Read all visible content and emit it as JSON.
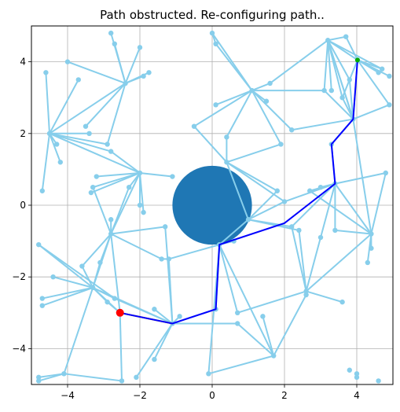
{
  "chart_data": {
    "type": "scatter",
    "title": "Path obstructed. Re-configuring path..",
    "xlabel": "",
    "ylabel": "",
    "xlim": [
      -5.0,
      5.0
    ],
    "ylim": [
      -5.0,
      5.0
    ],
    "grid": true,
    "x_ticks": [
      -4,
      -2,
      0,
      2,
      4
    ],
    "y_ticks": [
      -4,
      -2,
      0,
      2,
      4
    ],
    "x_tick_labels": [
      "−4",
      "−2",
      "0",
      "2",
      "4"
    ],
    "y_tick_labels": [
      "−4",
      "−2",
      "0",
      "2",
      "4"
    ],
    "obstacle": {
      "center": [
        0.0,
        0.0
      ],
      "radius": 1.1,
      "color": "#1f77b4"
    },
    "colors": {
      "tree": "#87ceeb",
      "path": "#0000ff",
      "retrace": "#ff8c00",
      "start": "#ff0000",
      "goal": "#00aa00"
    },
    "start": [
      -2.55,
      -3.0
    ],
    "goal": [
      4.02,
      4.05
    ],
    "nodes": [
      [
        -4.7,
        0.4
      ],
      [
        -4.6,
        3.7
      ],
      [
        -4.5,
        2.0
      ],
      [
        -4.3,
        1.7
      ],
      [
        -4.2,
        1.2
      ],
      [
        -4.0,
        4.0
      ],
      [
        -3.7,
        3.5
      ],
      [
        -3.5,
        2.2
      ],
      [
        -3.4,
        2.0
      ],
      [
        -3.2,
        0.8
      ],
      [
        -3.3,
        0.5
      ],
      [
        -3.35,
        0.35
      ],
      [
        -2.9,
        1.7
      ],
      [
        -2.8,
        1.5
      ],
      [
        -2.8,
        4.8
      ],
      [
        -2.7,
        4.5
      ],
      [
        -2.4,
        3.4
      ],
      [
        -2.0,
        4.4
      ],
      [
        -1.9,
        3.6
      ],
      [
        -1.75,
        3.7
      ],
      [
        -2.0,
        0.9
      ],
      [
        -2.3,
        0.5
      ],
      [
        -2.0,
        0.0
      ],
      [
        -1.9,
        -0.2
      ],
      [
        -1.1,
        0.8
      ],
      [
        -1.3,
        -0.6
      ],
      [
        -1.4,
        -1.5
      ],
      [
        -1.2,
        -1.5
      ],
      [
        -2.8,
        -0.4
      ],
      [
        -2.8,
        -0.8
      ],
      [
        -3.1,
        -1.6
      ],
      [
        -3.6,
        -1.7
      ],
      [
        -4.8,
        -1.1
      ],
      [
        -4.4,
        -2.0
      ],
      [
        -4.7,
        -2.6
      ],
      [
        -4.7,
        -2.8
      ],
      [
        -3.3,
        -2.3
      ],
      [
        -2.9,
        -2.7
      ],
      [
        -2.7,
        -2.6
      ],
      [
        -2.55,
        -3.0
      ],
      [
        -1.6,
        -2.9
      ],
      [
        -1.1,
        -3.3
      ],
      [
        -0.9,
        -3.1
      ],
      [
        -1.6,
        -4.3
      ],
      [
        -2.1,
        -4.8
      ],
      [
        -2.5,
        -4.9
      ],
      [
        -4.1,
        -4.7
      ],
      [
        -4.8,
        -4.8
      ],
      [
        -4.8,
        -4.9
      ],
      [
        -0.1,
        -4.7
      ],
      [
        0.1,
        -2.9
      ],
      [
        0.7,
        -3.0
      ],
      [
        0.7,
        -3.3
      ],
      [
        0.6,
        -1.0
      ],
      [
        0.2,
        -1.1
      ],
      [
        1.0,
        -0.4
      ],
      [
        1.7,
        -4.2
      ],
      [
        1.4,
        -3.1
      ],
      [
        2.6,
        -2.4
      ],
      [
        2.6,
        -2.5
      ],
      [
        3.6,
        -2.7
      ],
      [
        2.4,
        -0.7
      ],
      [
        2.2,
        -0.6
      ],
      [
        3.0,
        -0.9
      ],
      [
        3.4,
        -0.7
      ],
      [
        4.4,
        -0.8
      ],
      [
        4.4,
        -1.2
      ],
      [
        4.3,
        -1.6
      ],
      [
        4.8,
        0.9
      ],
      [
        3.4,
        0.6
      ],
      [
        3.0,
        0.5
      ],
      [
        2.7,
        0.4
      ],
      [
        1.8,
        0.4
      ],
      [
        2.0,
        0.1
      ],
      [
        3.3,
        1.7
      ],
      [
        3.9,
        2.4
      ],
      [
        3.1,
        3.2
      ],
      [
        3.3,
        3.2
      ],
      [
        3.2,
        4.6
      ],
      [
        3.7,
        4.7
      ],
      [
        3.6,
        3.0
      ],
      [
        3.8,
        3.5
      ],
      [
        4.02,
        4.05
      ],
      [
        4.7,
        3.8
      ],
      [
        4.6,
        3.7
      ],
      [
        4.9,
        3.6
      ],
      [
        4.9,
        2.8
      ],
      [
        2.2,
        2.1
      ],
      [
        1.6,
        3.4
      ],
      [
        1.1,
        3.2
      ],
      [
        1.5,
        2.9
      ],
      [
        1.9,
        1.7
      ],
      [
        0.1,
        2.8
      ],
      [
        0.4,
        1.9
      ],
      [
        -0.5,
        2.2
      ],
      [
        0.4,
        1.2
      ],
      [
        0.1,
        4.5
      ],
      [
        0.0,
        4.8
      ],
      [
        3.8,
        -4.6
      ],
      [
        4.0,
        -4.7
      ],
      [
        4.0,
        -4.8
      ],
      [
        4.6,
        -4.9
      ]
    ],
    "edges": [
      [
        -4.5,
        2.0,
        -4.7,
        0.4
      ],
      [
        -4.5,
        2.0,
        -4.6,
        3.7
      ],
      [
        -4.5,
        2.0,
        -4.3,
        1.7
      ],
      [
        -4.5,
        2.0,
        -4.2,
        1.2
      ],
      [
        -4.5,
        2.0,
        -3.7,
        3.5
      ],
      [
        -4.5,
        2.0,
        -3.4,
        2.0
      ],
      [
        -4.5,
        2.0,
        -2.9,
        1.7
      ],
      [
        -4.5,
        2.0,
        -2.4,
        3.4
      ],
      [
        -4.5,
        2.0,
        -2.8,
        1.5
      ],
      [
        -4.5,
        2.0,
        -2.0,
        0.9
      ],
      [
        -2.4,
        3.4,
        -4.0,
        4.0
      ],
      [
        -2.4,
        3.4,
        -3.5,
        2.2
      ],
      [
        -2.4,
        3.4,
        -2.8,
        4.8
      ],
      [
        -2.4,
        3.4,
        -2.7,
        4.5
      ],
      [
        -2.4,
        3.4,
        -2.0,
        4.4
      ],
      [
        -2.4,
        3.4,
        -1.9,
        3.6
      ],
      [
        -2.4,
        3.4,
        -1.75,
        3.7
      ],
      [
        -2.4,
        3.4,
        -2.9,
        1.7
      ],
      [
        -2.0,
        0.9,
        -3.2,
        0.8
      ],
      [
        -2.0,
        0.9,
        -3.3,
        0.5
      ],
      [
        -2.0,
        0.9,
        -3.35,
        0.35
      ],
      [
        -2.0,
        0.9,
        -2.3,
        0.5
      ],
      [
        -2.0,
        0.9,
        -1.9,
        -0.2
      ],
      [
        -2.0,
        0.9,
        -1.1,
        0.8
      ],
      [
        -2.0,
        0.9,
        -2.8,
        -0.8
      ],
      [
        -2.0,
        0.9,
        -2.8,
        1.5
      ],
      [
        -2.0,
        0.9,
        -2.0,
        0.0
      ],
      [
        -2.8,
        -0.8,
        -3.3,
        0.5
      ],
      [
        -2.8,
        -0.8,
        -2.8,
        -0.4
      ],
      [
        -2.8,
        -0.8,
        -1.3,
        -0.6
      ],
      [
        -2.8,
        -0.8,
        -1.4,
        -1.5
      ],
      [
        -2.8,
        -0.8,
        -3.6,
        -1.7
      ],
      [
        -2.8,
        -0.8,
        -3.1,
        -1.6
      ],
      [
        -2.8,
        -0.8,
        -3.3,
        -2.3
      ],
      [
        -2.8,
        -0.8,
        -2.3,
        0.5
      ],
      [
        -2.8,
        -0.8,
        -2.55,
        -3.0
      ],
      [
        -3.3,
        -2.3,
        -4.4,
        -2.0
      ],
      [
        -3.3,
        -2.3,
        -4.7,
        -2.6
      ],
      [
        -3.3,
        -2.3,
        -4.7,
        -2.8
      ],
      [
        -3.3,
        -2.3,
        -4.8,
        -1.1
      ],
      [
        -3.3,
        -2.3,
        -3.6,
        -1.7
      ],
      [
        -3.3,
        -2.3,
        -1.1,
        -3.3
      ],
      [
        -3.3,
        -2.3,
        -2.55,
        -3.0
      ],
      [
        -3.3,
        -2.3,
        -2.9,
        -2.7
      ],
      [
        -3.3,
        -2.3,
        -2.7,
        -2.6
      ],
      [
        -3.3,
        -2.3,
        -3.1,
        -1.6
      ],
      [
        -4.8,
        -1.1,
        -2.7,
        -2.6
      ],
      [
        -1.1,
        -3.3,
        -2.55,
        -3.0
      ],
      [
        -1.1,
        -3.3,
        -1.6,
        -2.9
      ],
      [
        -1.1,
        -3.3,
        -0.9,
        -3.1
      ],
      [
        -1.1,
        -3.3,
        -1.6,
        -4.3
      ],
      [
        -1.1,
        -3.3,
        -2.1,
        -4.8
      ],
      [
        -1.1,
        -3.3,
        0.1,
        -2.9
      ],
      [
        -1.1,
        -3.3,
        -1.2,
        -1.5
      ],
      [
        -1.1,
        -3.3,
        0.7,
        -3.3
      ],
      [
        -1.1,
        -3.3,
        -1.3,
        -0.6
      ],
      [
        -1.1,
        -3.3,
        -2.7,
        -2.6
      ],
      [
        -2.55,
        -3.0,
        -2.5,
        -4.9
      ],
      [
        -2.55,
        -3.0,
        -2.9,
        -2.7
      ],
      [
        -4.1,
        -4.7,
        -2.5,
        -4.9
      ],
      [
        -4.1,
        -4.7,
        -4.8,
        -4.8
      ],
      [
        -4.1,
        -4.7,
        -4.8,
        -4.9
      ],
      [
        -4.1,
        -4.7,
        -3.3,
        -2.3
      ],
      [
        -1.2,
        -1.5,
        0.2,
        -1.1
      ],
      [
        -1.4,
        -1.5,
        -1.2,
        -1.5
      ],
      [
        0.2,
        -1.1,
        1.0,
        -0.4
      ],
      [
        0.2,
        -1.1,
        0.6,
        -1.0
      ],
      [
        0.2,
        -1.1,
        0.1,
        -2.9
      ],
      [
        0.2,
        -1.1,
        -0.1,
        -4.7
      ],
      [
        0.2,
        -1.1,
        0.7,
        -3.0
      ],
      [
        0.2,
        -1.1,
        1.7,
        -4.2
      ],
      [
        -0.1,
        -4.7,
        1.7,
        -4.2
      ],
      [
        0.7,
        -3.0,
        2.6,
        -2.4
      ],
      [
        0.7,
        -3.3,
        1.7,
        -4.2
      ],
      [
        1.7,
        -4.2,
        1.4,
        -3.1
      ],
      [
        1.7,
        -4.2,
        2.6,
        -2.5
      ],
      [
        2.6,
        -2.4,
        2.2,
        -0.6
      ],
      [
        2.6,
        -2.4,
        3.6,
        -2.7
      ],
      [
        2.6,
        -2.4,
        3.0,
        -0.9
      ],
      [
        2.6,
        -2.4,
        4.4,
        -0.8
      ],
      [
        2.6,
        -2.4,
        2.4,
        -0.7
      ],
      [
        2.6,
        -2.5,
        2.6,
        -2.4
      ],
      [
        1.0,
        -0.4,
        2.2,
        -0.6
      ],
      [
        1.0,
        -0.4,
        1.8,
        0.4
      ],
      [
        1.0,
        -0.4,
        2.0,
        0.1
      ],
      [
        1.0,
        -0.4,
        2.4,
        -0.7
      ],
      [
        3.4,
        0.6,
        2.2,
        -0.6
      ],
      [
        3.4,
        0.6,
        3.0,
        0.5
      ],
      [
        3.4,
        0.6,
        2.7,
        0.4
      ],
      [
        3.4,
        0.6,
        3.4,
        -0.7
      ],
      [
        3.4,
        0.6,
        4.4,
        -0.8
      ],
      [
        3.4,
        0.6,
        4.8,
        0.9
      ],
      [
        3.4,
        0.6,
        3.3,
        1.7
      ],
      [
        3.4,
        0.6,
        2.0,
        0.1
      ],
      [
        3.4,
        0.6,
        3.0,
        -0.9
      ],
      [
        4.4,
        -0.8,
        4.4,
        -1.2
      ],
      [
        4.4,
        -0.8,
        4.3,
        -1.6
      ],
      [
        4.4,
        -0.8,
        3.4,
        -0.7
      ],
      [
        4.4,
        -0.8,
        2.7,
        0.4
      ],
      [
        4.4,
        -0.8,
        4.8,
        0.9
      ],
      [
        4.4,
        -0.8,
        3.9,
        2.4
      ],
      [
        3.9,
        2.4,
        3.3,
        1.7
      ],
      [
        3.9,
        2.4,
        4.9,
        2.8
      ],
      [
        3.9,
        2.4,
        3.6,
        3.0
      ],
      [
        3.9,
        2.4,
        3.8,
        3.5
      ],
      [
        3.9,
        2.4,
        4.02,
        4.05
      ],
      [
        3.9,
        2.4,
        2.2,
        2.1
      ],
      [
        3.9,
        2.4,
        3.1,
        3.2
      ],
      [
        3.9,
        2.4,
        3.2,
        4.6
      ],
      [
        3.2,
        4.6,
        3.7,
        4.7
      ],
      [
        3.2,
        4.6,
        3.1,
        3.2
      ],
      [
        3.2,
        4.6,
        3.3,
        3.2
      ],
      [
        3.2,
        4.6,
        3.6,
        3.0
      ],
      [
        3.2,
        4.6,
        3.8,
        3.5
      ],
      [
        3.2,
        4.6,
        4.02,
        4.05
      ],
      [
        3.2,
        4.6,
        4.7,
        3.8
      ],
      [
        3.2,
        4.6,
        1.6,
        3.4
      ],
      [
        3.2,
        4.6,
        3.9,
        2.4
      ],
      [
        4.02,
        4.05,
        4.7,
        3.8
      ],
      [
        4.02,
        4.05,
        4.6,
        3.7
      ],
      [
        4.02,
        4.05,
        4.9,
        3.6
      ],
      [
        4.02,
        4.05,
        4.9,
        2.8
      ],
      [
        4.02,
        4.05,
        3.6,
        3.0
      ],
      [
        4.02,
        4.05,
        3.7,
        4.7
      ],
      [
        1.1,
        3.2,
        1.6,
        3.4
      ],
      [
        1.1,
        3.2,
        1.5,
        2.9
      ],
      [
        1.1,
        3.2,
        1.9,
        1.7
      ],
      [
        1.1,
        3.2,
        0.1,
        2.8
      ],
      [
        1.1,
        3.2,
        0.4,
        1.9
      ],
      [
        1.1,
        3.2,
        -0.5,
        2.2
      ],
      [
        1.1,
        3.2,
        0.1,
        4.5
      ],
      [
        1.1,
        3.2,
        3.1,
        3.2
      ],
      [
        1.1,
        3.2,
        2.2,
        2.1
      ],
      [
        0.1,
        4.5,
        0.0,
        4.8
      ],
      [
        0.0,
        4.8,
        1.1,
        3.2
      ],
      [
        0.4,
        1.2,
        1.8,
        0.4
      ],
      [
        0.4,
        1.2,
        -0.5,
        2.2
      ],
      [
        0.4,
        1.2,
        1.9,
        1.7
      ],
      [
        0.4,
        1.2,
        0.4,
        1.9
      ],
      [
        0.4,
        1.2,
        2.0,
        0.1
      ],
      [
        0.4,
        1.2,
        1.0,
        -0.4
      ]
    ],
    "path": [
      [
        -2.55,
        -3.0
      ],
      [
        -1.1,
        -3.3
      ],
      [
        0.1,
        -2.9
      ],
      [
        0.2,
        -1.1
      ],
      [
        2.0,
        -0.5
      ],
      [
        3.4,
        0.6
      ],
      [
        3.3,
        1.7
      ],
      [
        3.9,
        2.4
      ],
      [
        4.02,
        4.05
      ]
    ],
    "retrace": [
      [
        -2.55,
        -3.0
      ],
      [
        -1.1,
        -3.3
      ]
    ]
  }
}
